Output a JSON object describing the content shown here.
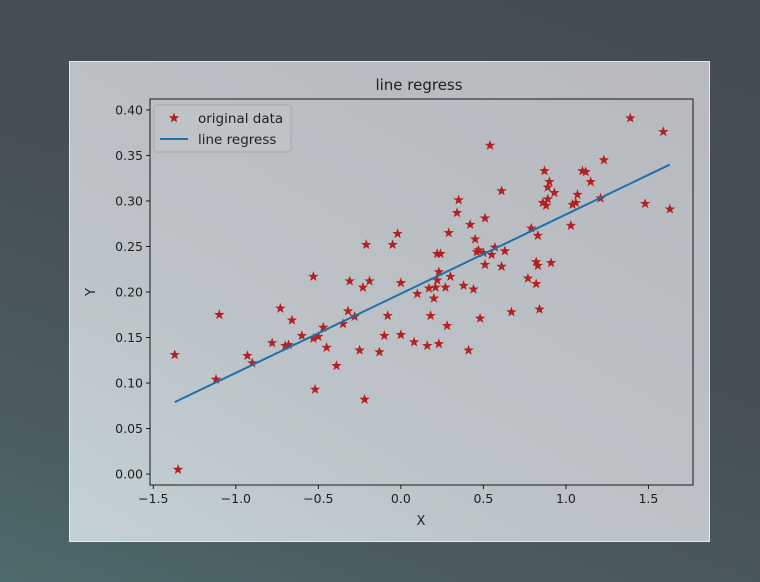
{
  "chart_data": {
    "type": "scatter",
    "title": "line regress",
    "xlabel": "X",
    "ylabel": "Y",
    "xlim": [
      -1.52,
      1.77
    ],
    "ylim": [
      -0.012,
      0.412
    ],
    "xticks": [
      -1.5,
      -1.0,
      -0.5,
      0.0,
      0.5,
      1.0,
      1.5
    ],
    "xtick_labels": [
      "−1.5",
      "−1.0",
      "−0.5",
      "0.0",
      "0.5",
      "1.0",
      "1.5"
    ],
    "yticks": [
      0.0,
      0.05,
      0.1,
      0.15,
      0.2,
      0.25,
      0.3,
      0.35,
      0.4
    ],
    "ytick_labels": [
      "0.00",
      "0.05",
      "0.10",
      "0.15",
      "0.20",
      "0.25",
      "0.30",
      "0.35",
      "0.40"
    ],
    "grid": false,
    "legend_position": "top-left",
    "series": [
      {
        "name": "original data",
        "kind": "scatter",
        "marker": "star",
        "color": "#b22222",
        "points": [
          [
            -1.37,
            0.131
          ],
          [
            -1.35,
            0.005
          ],
          [
            -1.12,
            0.104
          ],
          [
            -1.1,
            0.175
          ],
          [
            -0.93,
            0.13
          ],
          [
            -0.9,
            0.122
          ],
          [
            -0.78,
            0.144
          ],
          [
            -0.73,
            0.182
          ],
          [
            -0.7,
            0.141
          ],
          [
            -0.68,
            0.142
          ],
          [
            -0.66,
            0.169
          ],
          [
            -0.6,
            0.152
          ],
          [
            -0.53,
            0.217
          ],
          [
            -0.53,
            0.149
          ],
          [
            -0.52,
            0.093
          ],
          [
            -0.5,
            0.151
          ],
          [
            -0.47,
            0.161
          ],
          [
            -0.45,
            0.139
          ],
          [
            -0.39,
            0.119
          ],
          [
            -0.35,
            0.165
          ],
          [
            -0.32,
            0.179
          ],
          [
            -0.31,
            0.212
          ],
          [
            -0.28,
            0.173
          ],
          [
            -0.25,
            0.136
          ],
          [
            -0.23,
            0.205
          ],
          [
            -0.22,
            0.082
          ],
          [
            -0.21,
            0.252
          ],
          [
            -0.19,
            0.212
          ],
          [
            -0.13,
            0.134
          ],
          [
            -0.1,
            0.152
          ],
          [
            -0.08,
            0.174
          ],
          [
            -0.05,
            0.252
          ],
          [
            -0.02,
            0.264
          ],
          [
            0.0,
            0.21
          ],
          [
            0.0,
            0.153
          ],
          [
            0.08,
            0.145
          ],
          [
            0.1,
            0.198
          ],
          [
            0.16,
            0.141
          ],
          [
            0.17,
            0.204
          ],
          [
            0.18,
            0.174
          ],
          [
            0.2,
            0.193
          ],
          [
            0.21,
            0.205
          ],
          [
            0.22,
            0.242
          ],
          [
            0.22,
            0.213
          ],
          [
            0.23,
            0.222
          ],
          [
            0.23,
            0.143
          ],
          [
            0.24,
            0.242
          ],
          [
            0.27,
            0.205
          ],
          [
            0.28,
            0.163
          ],
          [
            0.29,
            0.265
          ],
          [
            0.3,
            0.217
          ],
          [
            0.34,
            0.287
          ],
          [
            0.35,
            0.301
          ],
          [
            0.38,
            0.207
          ],
          [
            0.41,
            0.136
          ],
          [
            0.42,
            0.274
          ],
          [
            0.44,
            0.203
          ],
          [
            0.45,
            0.258
          ],
          [
            0.46,
            0.244
          ],
          [
            0.47,
            0.246
          ],
          [
            0.48,
            0.171
          ],
          [
            0.5,
            0.243
          ],
          [
            0.51,
            0.23
          ],
          [
            0.51,
            0.281
          ],
          [
            0.54,
            0.361
          ],
          [
            0.55,
            0.241
          ],
          [
            0.57,
            0.249
          ],
          [
            0.61,
            0.311
          ],
          [
            0.61,
            0.228
          ],
          [
            0.63,
            0.245
          ],
          [
            0.67,
            0.178
          ],
          [
            0.77,
            0.215
          ],
          [
            0.79,
            0.27
          ],
          [
            0.82,
            0.209
          ],
          [
            0.82,
            0.233
          ],
          [
            0.83,
            0.229
          ],
          [
            0.83,
            0.262
          ],
          [
            0.84,
            0.181
          ],
          [
            0.86,
            0.298
          ],
          [
            0.87,
            0.333
          ],
          [
            0.88,
            0.295
          ],
          [
            0.89,
            0.302
          ],
          [
            0.89,
            0.315
          ],
          [
            0.9,
            0.321
          ],
          [
            0.91,
            0.232
          ],
          [
            0.93,
            0.309
          ],
          [
            1.03,
            0.273
          ],
          [
            1.04,
            0.296
          ],
          [
            1.06,
            0.298
          ],
          [
            1.07,
            0.307
          ],
          [
            1.1,
            0.333
          ],
          [
            1.12,
            0.332
          ],
          [
            1.15,
            0.321
          ],
          [
            1.21,
            0.303
          ],
          [
            1.23,
            0.345
          ],
          [
            1.39,
            0.391
          ],
          [
            1.48,
            0.297
          ],
          [
            1.59,
            0.376
          ],
          [
            1.63,
            0.291
          ]
        ]
      },
      {
        "name": "line regress",
        "kind": "line",
        "color": "#1f6fa8",
        "points": [
          [
            -1.37,
            0.079
          ],
          [
            1.63,
            0.34
          ]
        ]
      }
    ]
  }
}
